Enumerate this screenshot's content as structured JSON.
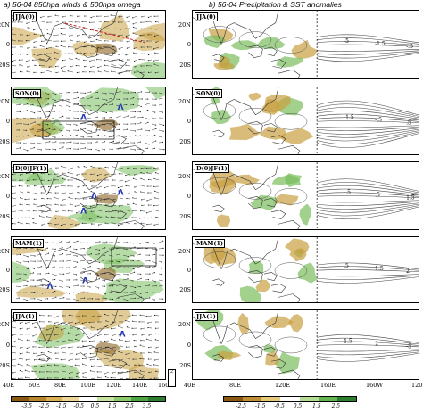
{
  "left": {
    "title": "a) 56-04  850hpa winds & 500hpa omega",
    "panels": [
      "JJA(0)",
      "SON(0)",
      "D(0)JF(1)",
      "MAM(1)",
      "JJA(1)"
    ],
    "x_ticks": [
      "40E",
      "60E",
      "80E",
      "100E",
      "120E",
      "140E",
      "160E"
    ],
    "y_ticks": [
      "20N",
      "0",
      "20S"
    ],
    "colorbar_ticks": [
      "-3.5",
      "-2.5",
      "-1.5",
      "-0.5",
      "0.5",
      "1.5",
      "2.5",
      "3.5"
    ],
    "colorbar_colors": [
      "#8a5a14",
      "#b8862c",
      "#d9b055",
      "#ecd596",
      "#ffffff",
      "#c6e3a4",
      "#8ccb6c",
      "#4ea544",
      "#2d7f2f"
    ],
    "vector_key": "2"
  },
  "right": {
    "title": "b) 56-04  Precipitation & SST anomalies",
    "panels": [
      "JJA(0)",
      "SON(0)",
      "D(0)JF(1)",
      "MAM(1)",
      "JJA(1)"
    ],
    "x_ticks": [
      "40E",
      "80E",
      "120E",
      "160E",
      "160W",
      "120W"
    ],
    "y_ticks": [
      "20N",
      "0",
      "20S"
    ],
    "colorbar_ticks": [
      "-2.5",
      "-1.5",
      "-0.5",
      "0.5",
      "1.5",
      "2.5"
    ],
    "colorbar_colors": [
      "#8a5a14",
      "#c08f35",
      "#e5c87a",
      "#ffffff",
      "#b5dc95",
      "#64b552",
      "#2d7f2f"
    ],
    "contour_labels": [
      "-5",
      "-1.5",
      "-.5",
      ".5",
      "1.5",
      "2"
    ]
  },
  "colors": {
    "dry": "#c9a040",
    "dry_dark": "#8a6220",
    "wet": "#79bd5c",
    "wet_light": "#bfe0a4",
    "arrow": "#2238b8",
    "red_line": "#cc2222"
  }
}
